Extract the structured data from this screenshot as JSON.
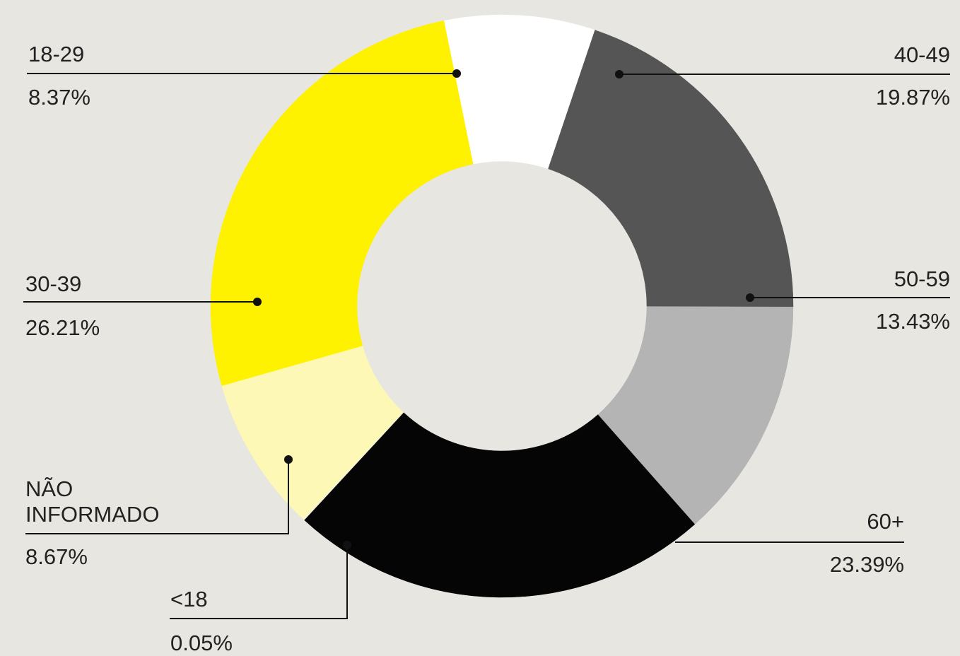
{
  "chart_data": {
    "type": "donut",
    "title": "",
    "slices": [
      {
        "label": "18-29",
        "value": 8.37,
        "value_label": "8.37%",
        "color": "#ffffff"
      },
      {
        "label": "40-49",
        "value": 19.87,
        "value_label": "19.87%",
        "color": "#555555"
      },
      {
        "label": "50-59",
        "value": 13.43,
        "value_label": "13.43%",
        "color": "#b4b4b4"
      },
      {
        "label": "60+",
        "value": 23.39,
        "value_label": "23.39%",
        "color": "#050505"
      },
      {
        "label": "<18",
        "value": 0.05,
        "value_label": "0.05%",
        "color": "#f0f0f0"
      },
      {
        "label": "NÃO INFORMADO",
        "label_lines": [
          "NÃO",
          "INFORMADO"
        ],
        "value": 8.67,
        "value_label": "8.67%",
        "color": "#fdf8b5"
      },
      {
        "label": "30-39",
        "value": 26.21,
        "value_label": "26.21%",
        "color": "#fef200"
      }
    ]
  },
  "colors": {
    "background": "#e8e6e1",
    "text": "#222222",
    "leader": "#111111"
  }
}
